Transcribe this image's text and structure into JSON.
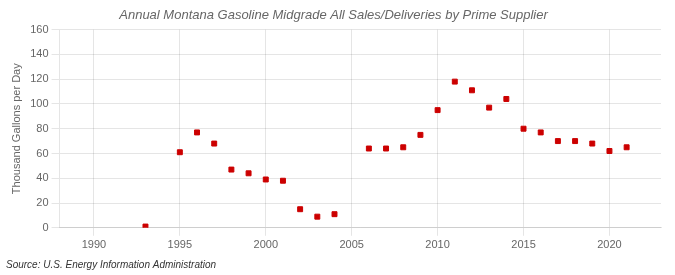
{
  "chart_data": {
    "type": "scatter",
    "title": "Annual Montana Gasoline Midgrade All Sales/Deliveries by Prime Supplier",
    "y_label": "Thousand Gallons per Day",
    "annotation": "Source: U.S. Energy Information Administration",
    "color": "#cc0000",
    "marker": "square",
    "grid": true,
    "xlim": [
      1988,
      2023
    ],
    "ylim": [
      0,
      160
    ],
    "xticks": [
      1990,
      1995,
      2000,
      2005,
      2010,
      2015,
      2020
    ],
    "yticks": [
      0,
      20,
      40,
      60,
      80,
      100,
      120,
      140,
      160
    ],
    "x": [
      1993,
      1995,
      1996,
      1997,
      1998,
      1999,
      2000,
      2001,
      2002,
      2003,
      2004,
      2006,
      2007,
      2008,
      2009,
      2010,
      2011,
      2012,
      2013,
      2014,
      2015,
      2016,
      2017,
      2018,
      2019,
      2020,
      2021
    ],
    "values": [
      1,
      61,
      77,
      68,
      47,
      44,
      39,
      38,
      15,
      9,
      11,
      64,
      64,
      65,
      75,
      95,
      118,
      111,
      97,
      104,
      80,
      77,
      70,
      70,
      68,
      62,
      65
    ]
  }
}
